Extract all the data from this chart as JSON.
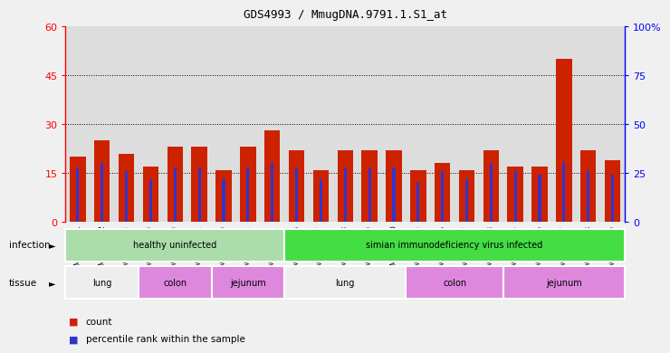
{
  "title": "GDS4993 / MmugDNA.9791.1.S1_at",
  "samples": [
    "GSM1249391",
    "GSM1249392",
    "GSM1249393",
    "GSM1249369",
    "GSM1249370",
    "GSM1249371",
    "GSM1249380",
    "GSM1249381",
    "GSM1249382",
    "GSM1249386",
    "GSM1249387",
    "GSM1249388",
    "GSM1249389",
    "GSM1249390",
    "GSM1249365",
    "GSM1249366",
    "GSM1249367",
    "GSM1249368",
    "GSM1249375",
    "GSM1249376",
    "GSM1249377",
    "GSM1249378",
    "GSM1249379"
  ],
  "counts": [
    20,
    25,
    21,
    17,
    23,
    23,
    16,
    23,
    28,
    22,
    16,
    22,
    22,
    22,
    16,
    18,
    16,
    22,
    17,
    17,
    50,
    22,
    19
  ],
  "percentiles": [
    28,
    30,
    26,
    22,
    28,
    28,
    22,
    28,
    30,
    28,
    22,
    28,
    28,
    28,
    20,
    26,
    22,
    30,
    26,
    24,
    30,
    26,
    24
  ],
  "bar_color": "#cc2200",
  "marker_color": "#3333cc",
  "left_ylim": [
    0,
    60
  ],
  "right_ylim": [
    0,
    100
  ],
  "left_yticks": [
    0,
    15,
    30,
    45,
    60
  ],
  "right_yticks": [
    0,
    25,
    50,
    75,
    100
  ],
  "infection_groups": [
    {
      "label": "healthy uninfected",
      "start": 0,
      "end": 9,
      "color": "#aaddaa"
    },
    {
      "label": "simian immunodeficiency virus infected",
      "start": 9,
      "end": 23,
      "color": "#44dd44"
    }
  ],
  "tissue_lung_color": "#eeeeee",
  "tissue_colon_color": "#dd88dd",
  "tissue_jejunum_color": "#dd88dd",
  "tissue_groups": [
    {
      "label": "lung",
      "start": 0,
      "end": 3,
      "type": "lung"
    },
    {
      "label": "colon",
      "start": 3,
      "end": 6,
      "type": "colon"
    },
    {
      "label": "jejunum",
      "start": 6,
      "end": 9,
      "type": "jejunum"
    },
    {
      "label": "lung",
      "start": 9,
      "end": 14,
      "type": "lung"
    },
    {
      "label": "colon",
      "start": 14,
      "end": 18,
      "type": "colon"
    },
    {
      "label": "jejunum",
      "start": 18,
      "end": 23,
      "type": "jejunum"
    }
  ],
  "col_bg_color": "#dddddd",
  "fig_bg_color": "#f0f0f0"
}
